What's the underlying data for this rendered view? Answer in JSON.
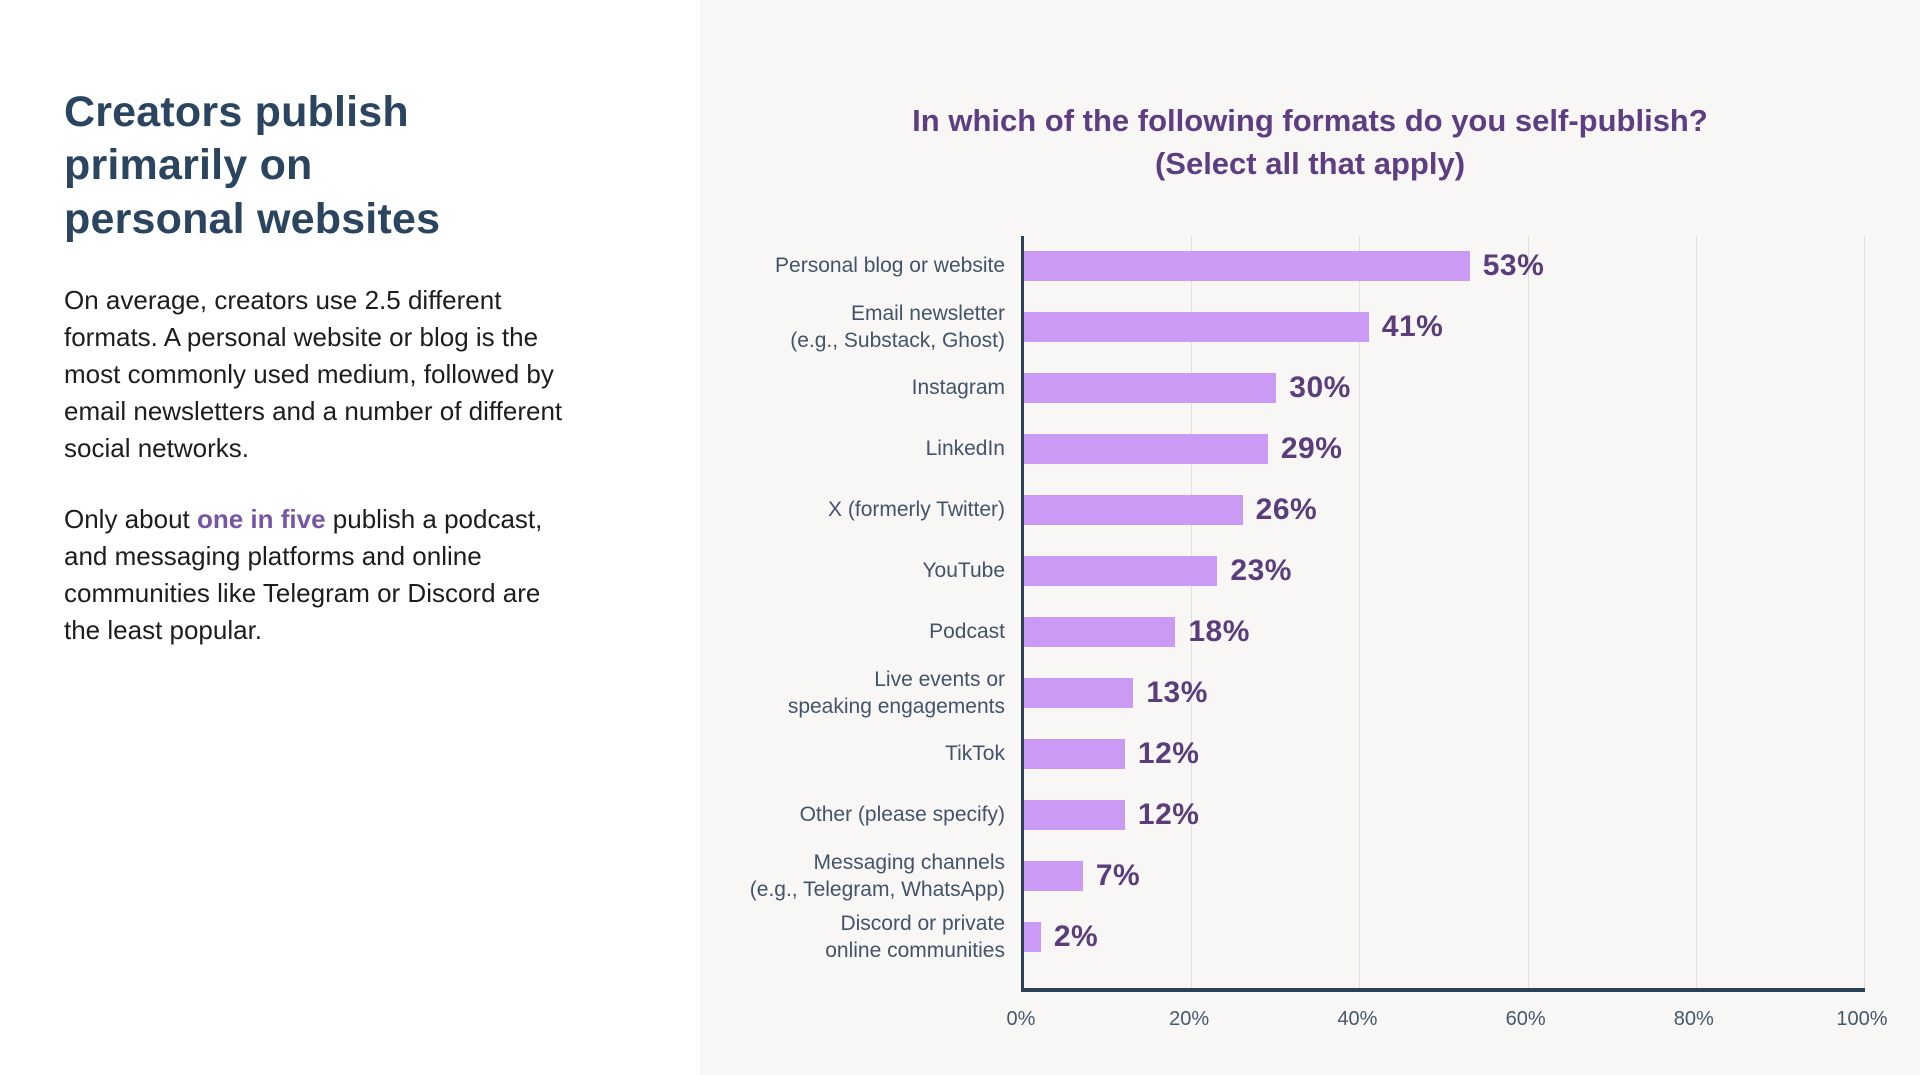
{
  "left_panel": {
    "heading": "Creators publish\nprimarily on\npersonal websites",
    "paragraph1": "On average, creators use 2.5 different\nformats. A personal website or blog is the\nmost commonly used medium, followed by\nemail newsletters and a number of different\nsocial networks.",
    "paragraph2": {
      "prefix": "Only about ",
      "highlight": "one in five",
      "suffix": " publish a podcast,\nand messaging platforms and online\ncommunities like Telegram or Discord are\nthe least popular."
    }
  },
  "chart_data": {
    "type": "bar",
    "orientation": "horizontal",
    "title": "In which of the following formats do you self-publish?\n(Select all that apply)",
    "categories": [
      "Personal blog or website",
      "Email newsletter\n(e.g., Substack, Ghost)",
      "Instagram",
      "LinkedIn",
      "X (formerly Twitter)",
      "YouTube",
      "Podcast",
      "Live events or\nspeaking engagements",
      "TikTok",
      "Other (please specify)",
      "Messaging channels\n(e.g., Telegram, WhatsApp)",
      "Discord or private\nonline communities"
    ],
    "values": [
      53,
      41,
      30,
      29,
      26,
      23,
      18,
      13,
      12,
      12,
      7,
      2
    ],
    "value_labels": [
      "53%",
      "41%",
      "30%",
      "29%",
      "26%",
      "23%",
      "18%",
      "13%",
      "12%",
      "12%",
      "7%",
      "2%"
    ],
    "x_ticks": [
      "0%",
      "20%",
      "40%",
      "60%",
      "80%",
      "100%"
    ],
    "xlim": [
      0,
      100
    ],
    "grid": true,
    "legend": false,
    "bar_color": "#cb9af4",
    "value_label_color": "#5a3d7a",
    "axis_color": "#2c4156",
    "gridline_color": "#e0dee3",
    "plot_background": "#f8f7f5"
  },
  "colors": {
    "left_background": "#ffffff",
    "right_background": "#f8f7f5",
    "heading": "#2b4560",
    "body_text": "#1d1d1d",
    "highlight": "#7656a5",
    "chart_title": "#5d3e82",
    "category_label": "#42536a",
    "tick_label": "#45586d"
  }
}
